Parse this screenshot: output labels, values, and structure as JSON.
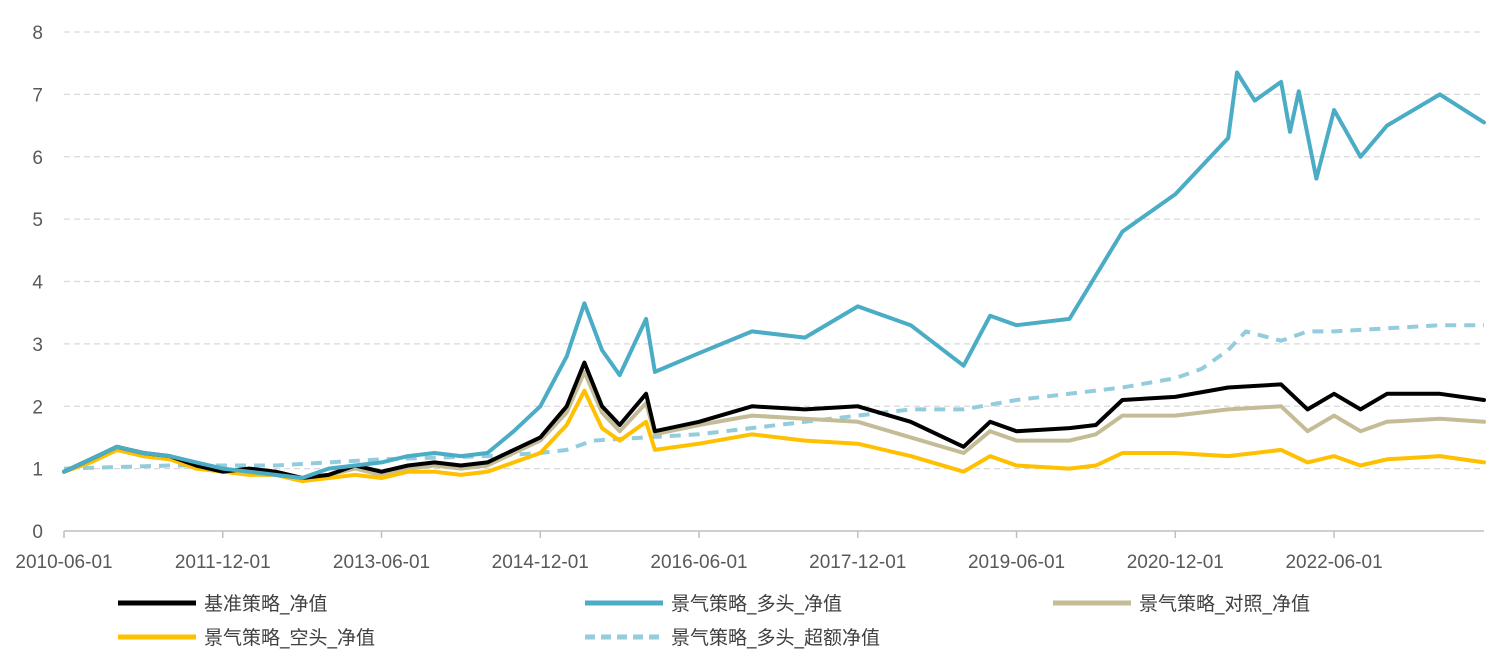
{
  "chart_data": {
    "type": "line",
    "title": "",
    "xlabel": "",
    "ylabel": "",
    "ylim": [
      0,
      8
    ],
    "yticks": [
      0,
      1,
      2,
      3,
      4,
      5,
      6,
      7,
      8
    ],
    "xlim": [
      "2010-06-01",
      "2023-11-01"
    ],
    "xticks": [
      "2010-06-01",
      "2011-12-01",
      "2013-06-01",
      "2014-12-01",
      "2016-06-01",
      "2017-12-01",
      "2019-06-01",
      "2020-12-01",
      "2022-06-01"
    ],
    "grid": "horizontal dashed",
    "legend_position": "bottom",
    "series": [
      {
        "name": "基准策略_净值",
        "color": "#000000",
        "style": "solid",
        "points": [
          [
            "2010-06-01",
            0.95
          ],
          [
            "2010-09-01",
            1.15
          ],
          [
            "2010-12-01",
            1.35
          ],
          [
            "2011-03-01",
            1.25
          ],
          [
            "2011-06-01",
            1.2
          ],
          [
            "2011-09-01",
            1.05
          ],
          [
            "2011-12-01",
            0.95
          ],
          [
            "2012-03-01",
            1.0
          ],
          [
            "2012-06-01",
            0.95
          ],
          [
            "2012-09-01",
            0.85
          ],
          [
            "2012-12-01",
            0.9
          ],
          [
            "2013-03-01",
            1.05
          ],
          [
            "2013-06-01",
            0.95
          ],
          [
            "2013-09-01",
            1.05
          ],
          [
            "2013-12-01",
            1.1
          ],
          [
            "2014-03-01",
            1.05
          ],
          [
            "2014-06-01",
            1.1
          ],
          [
            "2014-09-01",
            1.3
          ],
          [
            "2014-12-01",
            1.5
          ],
          [
            "2015-03-01",
            2.0
          ],
          [
            "2015-05-01",
            2.7
          ],
          [
            "2015-07-01",
            2.0
          ],
          [
            "2015-09-01",
            1.7
          ],
          [
            "2015-12-01",
            2.2
          ],
          [
            "2016-01-01",
            1.6
          ],
          [
            "2016-06-01",
            1.75
          ],
          [
            "2016-12-01",
            2.0
          ],
          [
            "2017-06-01",
            1.95
          ],
          [
            "2017-12-01",
            2.0
          ],
          [
            "2018-06-01",
            1.75
          ],
          [
            "2018-12-01",
            1.35
          ],
          [
            "2019-03-01",
            1.75
          ],
          [
            "2019-06-01",
            1.6
          ],
          [
            "2019-12-01",
            1.65
          ],
          [
            "2020-03-01",
            1.7
          ],
          [
            "2020-06-01",
            2.1
          ],
          [
            "2020-12-01",
            2.15
          ],
          [
            "2021-06-01",
            2.3
          ],
          [
            "2021-12-01",
            2.35
          ],
          [
            "2022-03-01",
            1.95
          ],
          [
            "2022-06-01",
            2.2
          ],
          [
            "2022-09-01",
            1.95
          ],
          [
            "2022-12-01",
            2.2
          ],
          [
            "2023-06-01",
            2.2
          ],
          [
            "2023-11-01",
            2.1
          ]
        ]
      },
      {
        "name": "景气策略_多头_净值",
        "color": "#4bacc6",
        "style": "solid",
        "points": [
          [
            "2010-06-01",
            0.95
          ],
          [
            "2010-09-01",
            1.15
          ],
          [
            "2010-12-01",
            1.35
          ],
          [
            "2011-03-01",
            1.25
          ],
          [
            "2011-06-01",
            1.2
          ],
          [
            "2011-09-01",
            1.1
          ],
          [
            "2011-12-01",
            1.0
          ],
          [
            "2012-03-01",
            0.95
          ],
          [
            "2012-06-01",
            0.9
          ],
          [
            "2012-09-01",
            0.85
          ],
          [
            "2012-12-01",
            1.0
          ],
          [
            "2013-03-01",
            1.05
          ],
          [
            "2013-06-01",
            1.1
          ],
          [
            "2013-09-01",
            1.2
          ],
          [
            "2013-12-01",
            1.25
          ],
          [
            "2014-03-01",
            1.2
          ],
          [
            "2014-06-01",
            1.25
          ],
          [
            "2014-09-01",
            1.6
          ],
          [
            "2014-12-01",
            2.0
          ],
          [
            "2015-03-01",
            2.8
          ],
          [
            "2015-05-01",
            3.65
          ],
          [
            "2015-07-01",
            2.9
          ],
          [
            "2015-09-01",
            2.5
          ],
          [
            "2015-11-01",
            3.1
          ],
          [
            "2015-12-01",
            3.4
          ],
          [
            "2016-01-01",
            2.55
          ],
          [
            "2016-06-01",
            2.85
          ],
          [
            "2016-12-01",
            3.2
          ],
          [
            "2017-06-01",
            3.1
          ],
          [
            "2017-12-01",
            3.6
          ],
          [
            "2018-06-01",
            3.3
          ],
          [
            "2018-12-01",
            2.65
          ],
          [
            "2019-03-01",
            3.45
          ],
          [
            "2019-06-01",
            3.3
          ],
          [
            "2019-12-01",
            3.4
          ],
          [
            "2020-06-01",
            4.8
          ],
          [
            "2020-12-01",
            5.4
          ],
          [
            "2021-06-01",
            6.3
          ],
          [
            "2021-07-01",
            7.35
          ],
          [
            "2021-09-01",
            6.9
          ],
          [
            "2021-12-01",
            7.2
          ],
          [
            "2022-01-01",
            6.4
          ],
          [
            "2022-02-01",
            7.05
          ],
          [
            "2022-04-01",
            5.65
          ],
          [
            "2022-06-01",
            6.75
          ],
          [
            "2022-09-01",
            6.0
          ],
          [
            "2022-12-01",
            6.5
          ],
          [
            "2023-06-01",
            7.0
          ],
          [
            "2023-11-01",
            6.55
          ]
        ]
      },
      {
        "name": "景气策略_对照_净值",
        "color": "#c4bc96",
        "style": "solid",
        "points": [
          [
            "2010-06-01",
            0.95
          ],
          [
            "2010-09-01",
            1.1
          ],
          [
            "2010-12-01",
            1.3
          ],
          [
            "2011-03-01",
            1.2
          ],
          [
            "2011-06-01",
            1.15
          ],
          [
            "2011-09-01",
            1.05
          ],
          [
            "2011-12-01",
            0.95
          ],
          [
            "2012-03-01",
            1.0
          ],
          [
            "2012-06-01",
            0.95
          ],
          [
            "2012-09-01",
            0.85
          ],
          [
            "2012-12-01",
            0.9
          ],
          [
            "2013-03-01",
            1.0
          ],
          [
            "2013-06-01",
            0.9
          ],
          [
            "2013-09-01",
            1.0
          ],
          [
            "2013-12-01",
            1.05
          ],
          [
            "2014-03-01",
            1.0
          ],
          [
            "2014-06-01",
            1.05
          ],
          [
            "2014-09-01",
            1.25
          ],
          [
            "2014-12-01",
            1.45
          ],
          [
            "2015-03-01",
            1.9
          ],
          [
            "2015-05-01",
            2.55
          ],
          [
            "2015-07-01",
            1.9
          ],
          [
            "2015-09-01",
            1.6
          ],
          [
            "2015-12-01",
            2.05
          ],
          [
            "2016-01-01",
            1.55
          ],
          [
            "2016-06-01",
            1.7
          ],
          [
            "2016-12-01",
            1.85
          ],
          [
            "2017-06-01",
            1.8
          ],
          [
            "2017-12-01",
            1.75
          ],
          [
            "2018-06-01",
            1.5
          ],
          [
            "2018-12-01",
            1.25
          ],
          [
            "2019-03-01",
            1.6
          ],
          [
            "2019-06-01",
            1.45
          ],
          [
            "2019-12-01",
            1.45
          ],
          [
            "2020-03-01",
            1.55
          ],
          [
            "2020-06-01",
            1.85
          ],
          [
            "2020-12-01",
            1.85
          ],
          [
            "2021-06-01",
            1.95
          ],
          [
            "2021-12-01",
            2.0
          ],
          [
            "2022-03-01",
            1.6
          ],
          [
            "2022-06-01",
            1.85
          ],
          [
            "2022-09-01",
            1.6
          ],
          [
            "2022-12-01",
            1.75
          ],
          [
            "2023-06-01",
            1.8
          ],
          [
            "2023-11-01",
            1.75
          ]
        ]
      },
      {
        "name": "景气策略_空头_净值",
        "color": "#ffc000",
        "style": "solid",
        "points": [
          [
            "2010-06-01",
            0.95
          ],
          [
            "2010-09-01",
            1.1
          ],
          [
            "2010-12-01",
            1.3
          ],
          [
            "2011-03-01",
            1.2
          ],
          [
            "2011-06-01",
            1.15
          ],
          [
            "2011-09-01",
            1.0
          ],
          [
            "2011-12-01",
            0.95
          ],
          [
            "2012-03-01",
            0.9
          ],
          [
            "2012-06-01",
            0.9
          ],
          [
            "2012-09-01",
            0.8
          ],
          [
            "2012-12-01",
            0.85
          ],
          [
            "2013-03-01",
            0.9
          ],
          [
            "2013-06-01",
            0.85
          ],
          [
            "2013-09-01",
            0.95
          ],
          [
            "2013-12-01",
            0.95
          ],
          [
            "2014-03-01",
            0.9
          ],
          [
            "2014-06-01",
            0.95
          ],
          [
            "2014-09-01",
            1.1
          ],
          [
            "2014-12-01",
            1.25
          ],
          [
            "2015-03-01",
            1.7
          ],
          [
            "2015-05-01",
            2.25
          ],
          [
            "2015-07-01",
            1.65
          ],
          [
            "2015-09-01",
            1.45
          ],
          [
            "2015-12-01",
            1.75
          ],
          [
            "2016-01-01",
            1.3
          ],
          [
            "2016-06-01",
            1.4
          ],
          [
            "2016-12-01",
            1.55
          ],
          [
            "2017-06-01",
            1.45
          ],
          [
            "2017-12-01",
            1.4
          ],
          [
            "2018-06-01",
            1.2
          ],
          [
            "2018-12-01",
            0.95
          ],
          [
            "2019-03-01",
            1.2
          ],
          [
            "2019-06-01",
            1.05
          ],
          [
            "2019-12-01",
            1.0
          ],
          [
            "2020-03-01",
            1.05
          ],
          [
            "2020-06-01",
            1.25
          ],
          [
            "2020-12-01",
            1.25
          ],
          [
            "2021-06-01",
            1.2
          ],
          [
            "2021-12-01",
            1.3
          ],
          [
            "2022-03-01",
            1.1
          ],
          [
            "2022-06-01",
            1.2
          ],
          [
            "2022-09-01",
            1.05
          ],
          [
            "2022-12-01",
            1.15
          ],
          [
            "2023-06-01",
            1.2
          ],
          [
            "2023-11-01",
            1.1
          ]
        ]
      },
      {
        "name": "景气策略_多头_超额净值",
        "color": "#93cddd",
        "style": "dashed",
        "points": [
          [
            "2010-06-01",
            1.0
          ],
          [
            "2011-06-01",
            1.05
          ],
          [
            "2012-06-01",
            1.05
          ],
          [
            "2013-06-01",
            1.15
          ],
          [
            "2014-06-01",
            1.2
          ],
          [
            "2014-12-01",
            1.25
          ],
          [
            "2015-03-01",
            1.3
          ],
          [
            "2015-06-01",
            1.45
          ],
          [
            "2016-06-01",
            1.55
          ],
          [
            "2017-06-01",
            1.75
          ],
          [
            "2018-06-01",
            1.95
          ],
          [
            "2018-12-01",
            1.95
          ],
          [
            "2019-06-01",
            2.1
          ],
          [
            "2020-06-01",
            2.3
          ],
          [
            "2020-12-01",
            2.45
          ],
          [
            "2021-03-01",
            2.6
          ],
          [
            "2021-06-01",
            2.9
          ],
          [
            "2021-08-01",
            3.2
          ],
          [
            "2021-12-01",
            3.05
          ],
          [
            "2022-03-01",
            3.2
          ],
          [
            "2022-06-01",
            3.2
          ],
          [
            "2022-12-01",
            3.25
          ],
          [
            "2023-06-01",
            3.3
          ],
          [
            "2023-11-01",
            3.3
          ]
        ]
      }
    ]
  }
}
